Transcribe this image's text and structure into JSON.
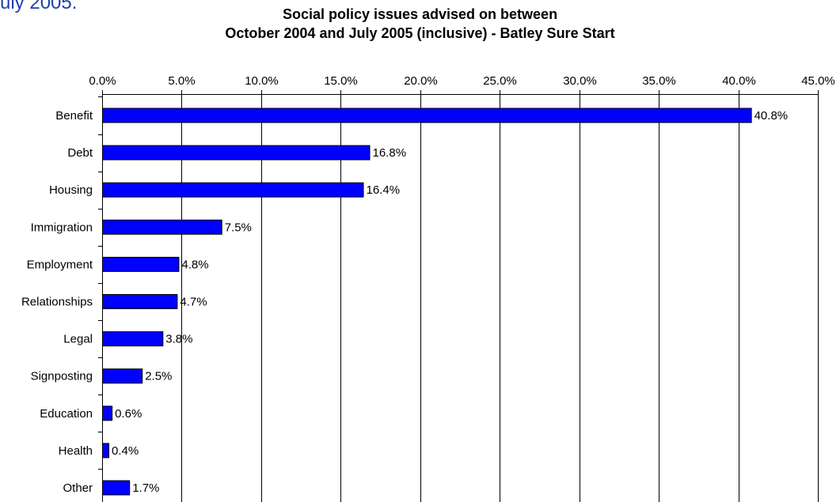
{
  "fragment_text": "uly 2005.",
  "chart_data": {
    "type": "bar",
    "orientation": "horizontal",
    "title": [
      "Social policy issues advised on between",
      "October 2004 and July 2005 (inclusive) - Batley Sure Start"
    ],
    "categories": [
      "Benefit",
      "Debt",
      "Housing",
      "Immigration",
      "Employment",
      "Relationships",
      "Legal",
      "Signposting",
      "Education",
      "Health",
      "Other"
    ],
    "values": [
      40.8,
      16.8,
      16.4,
      7.5,
      4.8,
      4.7,
      3.8,
      2.5,
      0.6,
      0.4,
      1.7
    ],
    "data_labels": [
      "40.8%",
      "16.8%",
      "16.4%",
      "7.5%",
      "4.8%",
      "4.7%",
      "3.8%",
      "2.5%",
      "0.6%",
      "0.4%",
      "1.7%"
    ],
    "xlim": [
      0,
      45
    ],
    "xticks": [
      0,
      5,
      10,
      15,
      20,
      25,
      30,
      35,
      40,
      45
    ],
    "xtick_labels": [
      "0.0%",
      "5.0%",
      "10.0%",
      "15.0%",
      "20.0%",
      "25.0%",
      "30.0%",
      "35.0%",
      "40.0%",
      "45.0%"
    ],
    "x_axis_position": "top",
    "grid": "vertical",
    "bar_color": "#0000ff",
    "xlabel": "",
    "ylabel": ""
  }
}
